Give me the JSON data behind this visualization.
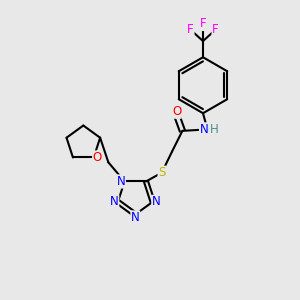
{
  "bg_color": "#e8e8e8",
  "atom_colors": {
    "C": "#000000",
    "N": "#0000ff",
    "O": "#ff0000",
    "S": "#b8b800",
    "F": "#ff00ff",
    "H": "#4a9090"
  },
  "bond_color": "#000000",
  "bond_width": 1.5,
  "font_size": 8.5
}
